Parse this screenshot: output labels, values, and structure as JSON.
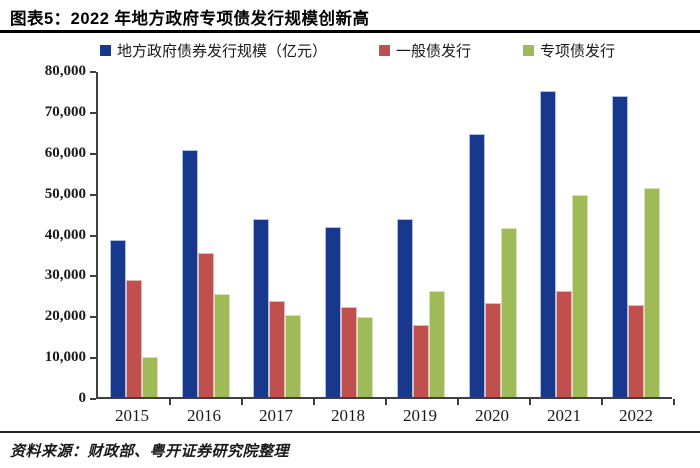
{
  "header": {
    "title": "图表5：2022 年地方政府专项债发行规模创新高"
  },
  "legend": {
    "items": [
      {
        "label": "地方政府债券发行规模（亿元）",
        "color": "#17388D"
      },
      {
        "label": "一般债发行",
        "color": "#C0504D"
      },
      {
        "label": "专项债发行",
        "color": "#9FBB58"
      }
    ]
  },
  "chart_data": {
    "type": "bar",
    "title": "2022 年地方政府专项债发行规模创新高",
    "categories": [
      "2015",
      "2016",
      "2017",
      "2018",
      "2019",
      "2020",
      "2021",
      "2022"
    ],
    "series": [
      {
        "key": "total",
        "name": "地方政府债券发行规模（亿元）",
        "color": "#17388D",
        "edge": "#AEC0E2",
        "values": [
          38400,
          60400,
          43600,
          41600,
          43600,
          64400,
          74900,
          73600
        ]
      },
      {
        "key": "general",
        "name": "一般债发行",
        "color": "#C0504D",
        "edge": "#E4B8B6",
        "values": [
          28600,
          35300,
          23600,
          22100,
          17700,
          23000,
          25900,
          22500
        ]
      },
      {
        "key": "special",
        "name": "专项债发行",
        "color": "#9FBB58",
        "edge": "#D8E2B5",
        "values": [
          9700,
          25100,
          20000,
          19500,
          25900,
          41300,
          49300,
          51200
        ]
      }
    ],
    "xlabel": "",
    "ylabel": "",
    "ylim": [
      0,
      80000
    ],
    "ytick_labels": [
      "80,000",
      "70,000",
      "60,000",
      "50,000",
      "40,000",
      "30,000",
      "20,000",
      "10,000",
      "0"
    ],
    "grid": false,
    "legend_position": "top",
    "axis_color": "#404040"
  },
  "footer": {
    "source": "资料来源：财政部、粤开证券研究院整理"
  }
}
